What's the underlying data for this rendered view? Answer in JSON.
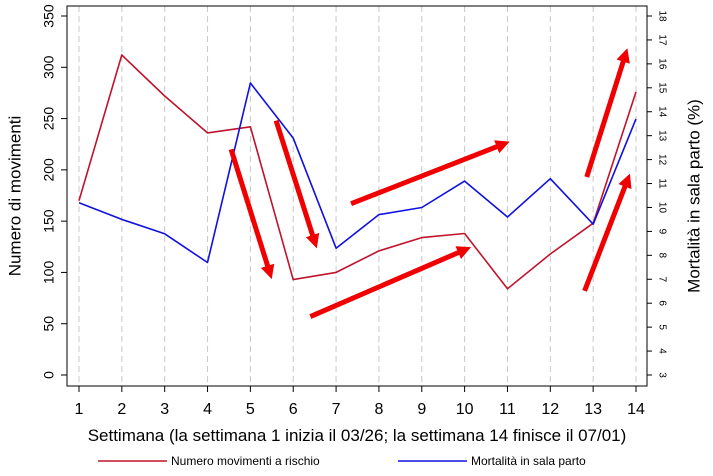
{
  "chart_data": {
    "type": "line",
    "x": [
      1,
      2,
      3,
      4,
      5,
      6,
      7,
      8,
      9,
      10,
      11,
      12,
      13,
      14
    ],
    "xlabel": "Settimana (la settimana 1 inizia il 03/26; la settimana 14 finisce il 07/01)",
    "ylabel_left": "Numero di movimenti",
    "ylabel_right": "Mortalità in sala parto (%)",
    "ylim_left": [
      0,
      350
    ],
    "yticks_left": [
      0,
      50,
      100,
      150,
      200,
      250,
      300,
      350
    ],
    "ylim_right": [
      3,
      18
    ],
    "yticks_right": [
      3,
      4,
      5,
      6,
      7,
      8,
      9,
      10,
      11,
      12,
      13,
      14,
      15,
      16,
      17,
      18
    ],
    "xticks": [
      1,
      2,
      3,
      4,
      5,
      6,
      7,
      8,
      9,
      10,
      11,
      12,
      13,
      14
    ],
    "grid": "vertical dashed",
    "legend_position": "bottom",
    "series": [
      {
        "name": "Numero movimenti a rischio",
        "axis": "left",
        "color": "#c0142c",
        "values": [
          170,
          312,
          272,
          236,
          242,
          93,
          100,
          121,
          134,
          138,
          84,
          118,
          148,
          276
        ]
      },
      {
        "name": "Mortalità in sala parto",
        "axis": "right",
        "color": "#1010e0",
        "values": [
          10.2,
          9.5,
          8.9,
          7.7,
          15.2,
          12.9,
          8.3,
          9.7,
          10.0,
          11.1,
          9.6,
          11.2,
          9.3,
          13.7
        ]
      }
    ],
    "annotations": {
      "arrow_color": "#f00000",
      "arrows": [
        {
          "from": [
            4.55,
            220
          ],
          "to": [
            5.45,
            100
          ]
        },
        {
          "from": [
            5.6,
            248
          ],
          "to": [
            6.5,
            130
          ]
        },
        {
          "from": [
            6.4,
            57
          ],
          "to": [
            10.0,
            122
          ]
        },
        {
          "from": [
            7.35,
            167
          ],
          "to": [
            10.9,
            225
          ]
        },
        {
          "from": [
            12.8,
            82
          ],
          "to": [
            13.8,
            190
          ]
        },
        {
          "from": [
            12.85,
            193
          ],
          "to": [
            13.75,
            312
          ]
        }
      ]
    }
  }
}
